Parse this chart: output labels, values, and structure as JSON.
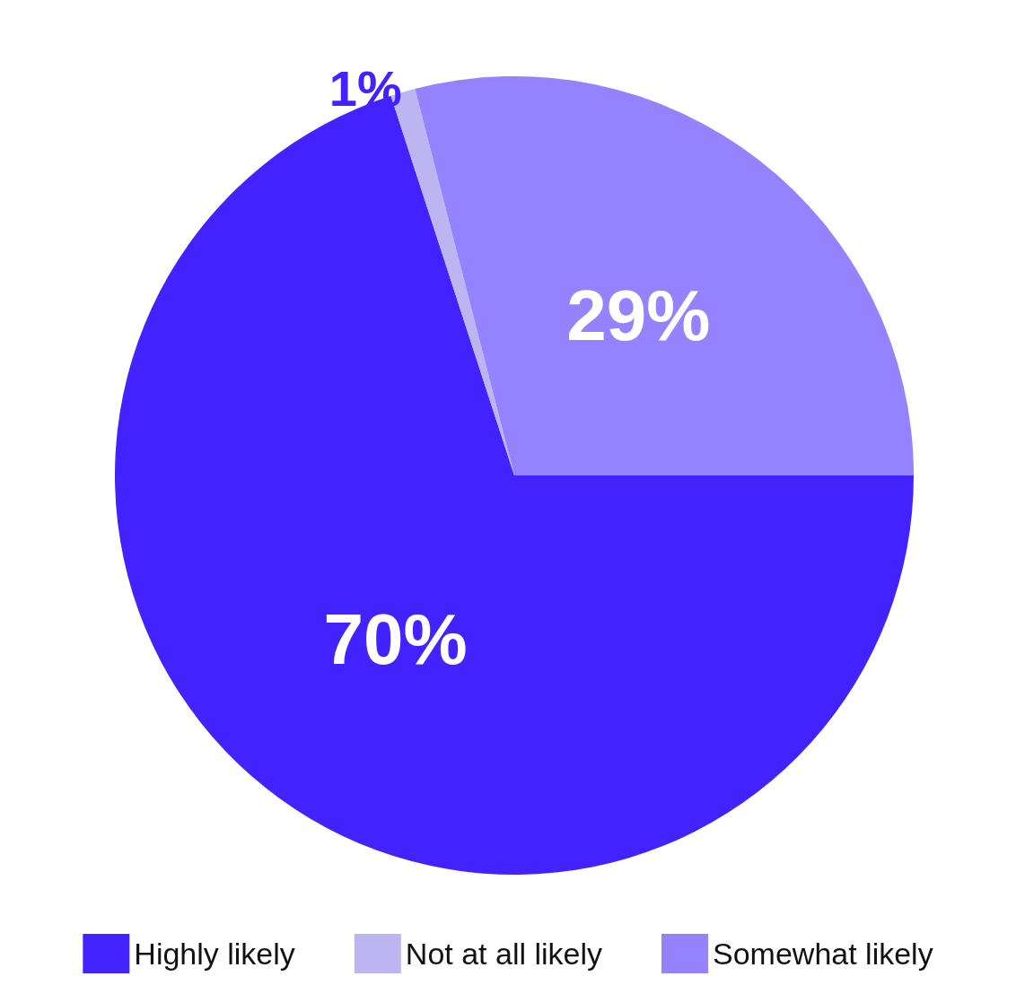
{
  "chart_data": {
    "type": "pie",
    "categories": [
      "Highly likely",
      "Not at all likely",
      "Somewhat likely"
    ],
    "values": [
      70,
      1,
      29
    ],
    "colors": [
      "#4222ff",
      "#bdb5f2",
      "#9582ff"
    ],
    "value_labels": [
      "70%",
      "1%",
      "29%"
    ],
    "legend": "bottom"
  }
}
